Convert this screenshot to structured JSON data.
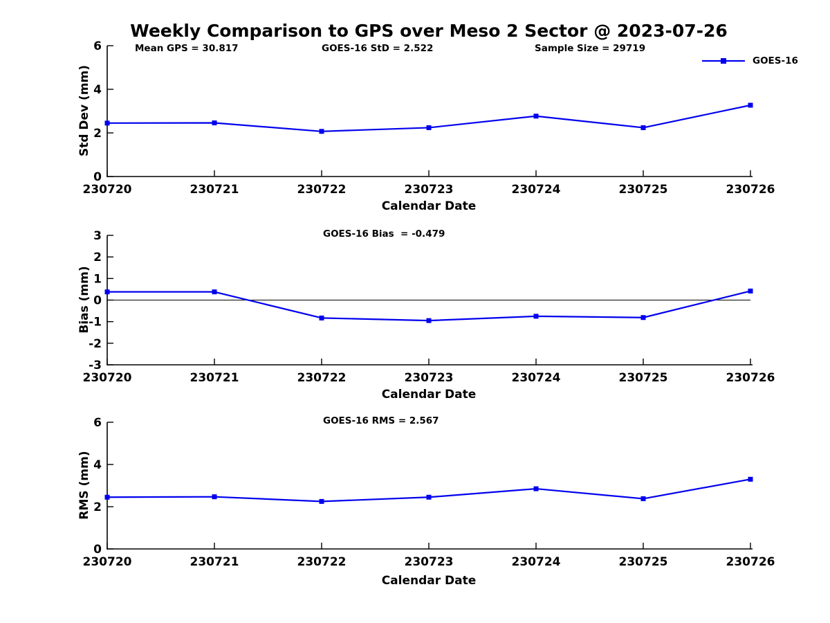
{
  "title": "Weekly Comparison to GPS over Meso 2 Sector @ 2023-07-26",
  "legend": {
    "label": "GOES-16",
    "position": "top-right"
  },
  "colors": {
    "series": "#0000EE",
    "axis": "#000000",
    "zero_line": "#000000",
    "text": "#000000"
  },
  "chart_data": [
    {
      "type": "line",
      "name": "std-dev",
      "annotations": [
        "Mean GPS = 30.817",
        "GOES-16 StD = 2.522",
        "Sample Size = 29719"
      ],
      "categories": [
        "230720",
        "230721",
        "230722",
        "230723",
        "230724",
        "230725",
        "230726"
      ],
      "series": [
        {
          "name": "GOES-16",
          "values": [
            2.45,
            2.46,
            2.07,
            2.24,
            2.77,
            2.24,
            3.27
          ]
        }
      ],
      "xlabel": "Calendar Date",
      "ylabel": "Std Dev (mm)",
      "ylim": [
        0,
        6
      ],
      "yticks": [
        0,
        2,
        4,
        6
      ],
      "grid": false,
      "zero_line": false,
      "legend_entries": [
        "GOES-16"
      ]
    },
    {
      "type": "line",
      "name": "bias",
      "annotations": [
        "GOES-16 Bias  = -0.479"
      ],
      "categories": [
        "230720",
        "230721",
        "230722",
        "230723",
        "230724",
        "230725",
        "230726"
      ],
      "series": [
        {
          "name": "GOES-16",
          "values": [
            0.38,
            0.38,
            -0.83,
            -0.95,
            -0.75,
            -0.81,
            0.42
          ]
        }
      ],
      "xlabel": "Calendar Date",
      "ylabel": "Bias (mm)",
      "ylim": [
        -3,
        3
      ],
      "yticks": [
        -3,
        -2,
        -1,
        0,
        1,
        2,
        3
      ],
      "grid": false,
      "zero_line": true
    },
    {
      "type": "line",
      "name": "rms",
      "annotations": [
        "GOES-16 RMS = 2.567"
      ],
      "categories": [
        "230720",
        "230721",
        "230722",
        "230723",
        "230724",
        "230725",
        "230726"
      ],
      "series": [
        {
          "name": "GOES-16",
          "values": [
            2.45,
            2.47,
            2.25,
            2.45,
            2.85,
            2.38,
            3.3
          ]
        }
      ],
      "xlabel": "Calendar Date",
      "ylabel": "RMS (mm)",
      "ylim": [
        0,
        6
      ],
      "yticks": [
        0,
        2,
        4,
        6
      ],
      "grid": false,
      "zero_line": false
    }
  ]
}
